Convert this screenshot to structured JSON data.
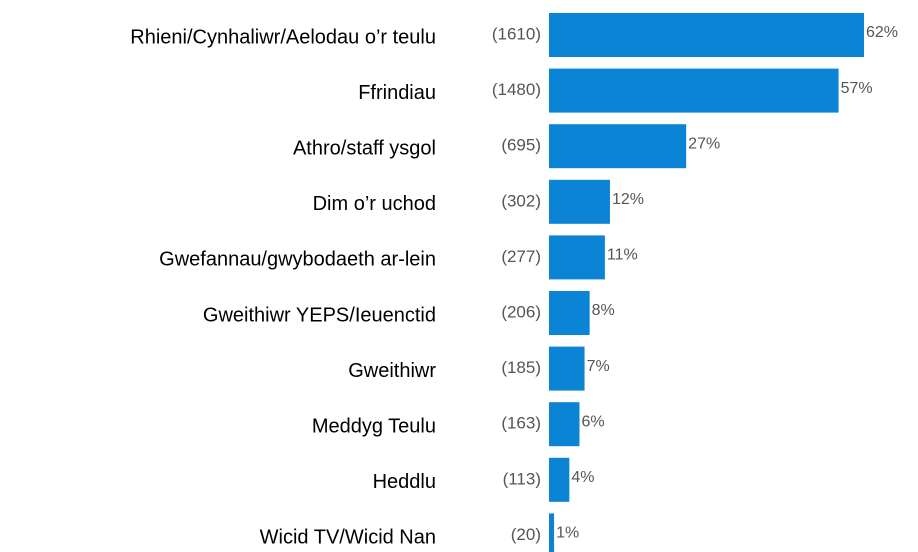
{
  "chart_data": {
    "type": "hbar",
    "categories": [
      "Rhieni/Cynhaliwr/Aelodau o’r teulu",
      "Ffrindiau",
      "Athro/staff ysgol",
      "Dim o’r uchod",
      "Gwefannau/gwybodaeth ar-lein",
      "Gweithiwr YEPS/Ieuenctid",
      "Gweithiwr",
      "Meddyg Teulu",
      "Heddlu",
      "Wicid TV/Wicid Nan"
    ],
    "values": [
      62,
      57,
      27,
      12,
      11,
      8,
      7,
      6,
      4,
      1
    ],
    "value_labels": [
      "62%",
      "57%",
      "27%",
      "12%",
      "11%",
      "8%",
      "7%",
      "6%",
      "4%",
      "1%"
    ],
    "counts": [
      1610,
      1480,
      695,
      302,
      277,
      206,
      185,
      163,
      113,
      20
    ],
    "count_labels": [
      "(1610)",
      "(1480)",
      "(695)",
      "(302)",
      "(277)",
      "(206)",
      "(185)",
      "(163)",
      "(113)",
      "(20)"
    ],
    "color": "#0b84d6",
    "xlim": [
      0,
      62
    ]
  }
}
